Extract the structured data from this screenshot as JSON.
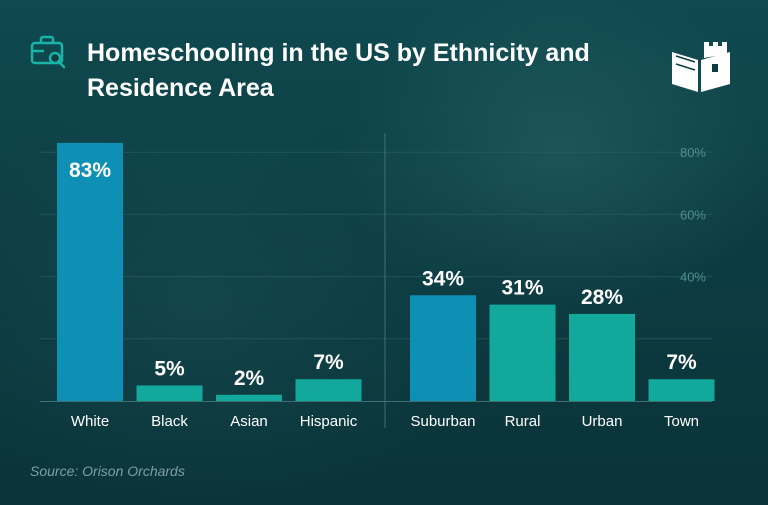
{
  "title": "Homeschooling in the US by Ethnicity and Residence Area",
  "source": "Source: Orison Orchards",
  "icons": {
    "title_icon": "briefcase-search-icon",
    "logo": "book-castle-logo-icon"
  },
  "colors": {
    "highlight_bar": "#0e8fb4",
    "bar": "#12a99c",
    "text": "#ffffff",
    "tick_label": "#4f8e8f",
    "source_text": "#7f9fa2"
  },
  "chart_data": [
    {
      "type": "bar",
      "group": "Ethnicity",
      "categories": [
        "White",
        "Black",
        "Asian",
        "Hispanic"
      ],
      "values": [
        83,
        5,
        2,
        7
      ],
      "labels": [
        "83%",
        "5%",
        "2%",
        "7%"
      ],
      "highlight": "White",
      "ylim": [
        0,
        85
      ]
    },
    {
      "type": "bar",
      "group": "Residence Area",
      "categories": [
        "Suburban",
        "Rural",
        "Urban",
        "Town"
      ],
      "values": [
        34,
        31,
        28,
        7
      ],
      "labels": [
        "34%",
        "31%",
        "28%",
        "7%"
      ],
      "highlight": "Suburban",
      "ylim": [
        0,
        85
      ],
      "yticks": [
        "80%",
        "60%",
        "40%"
      ],
      "ytick_values": [
        80,
        60,
        40
      ],
      "grid": true
    }
  ]
}
